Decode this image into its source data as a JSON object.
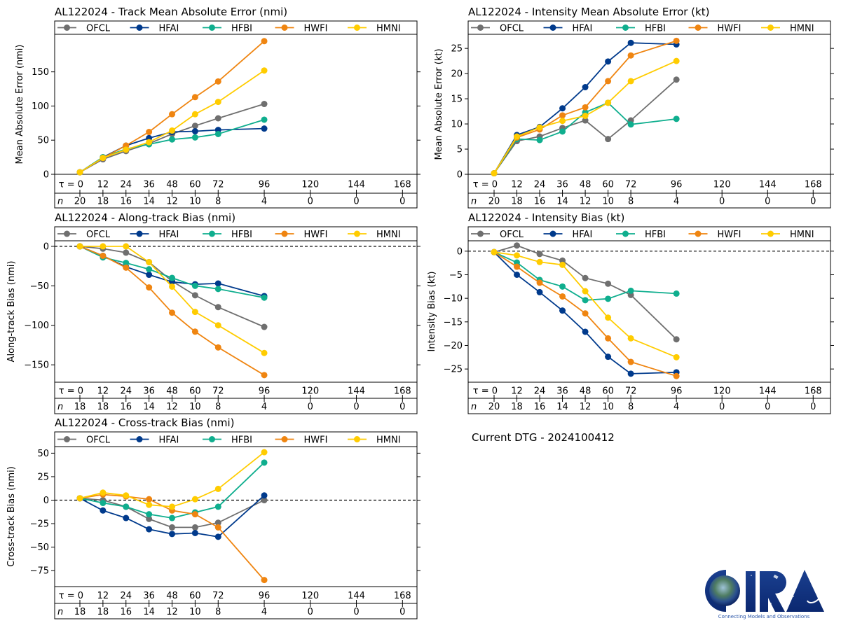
{
  "page": {
    "current_dtg_label": "Current DTG - 2024100412",
    "logo": {
      "name": "CIRA",
      "tagline": "Connecting Models and Observations"
    }
  },
  "series_styles": [
    {
      "name": "OFCL",
      "color": "#6f6f6f"
    },
    {
      "name": "HFAI",
      "color": "#003a8c"
    },
    {
      "name": "HFBI",
      "color": "#0fae8e"
    },
    {
      "name": "HWFI",
      "color": "#ef8511"
    },
    {
      "name": "HMNI",
      "color": "#ffcc00"
    }
  ],
  "chart_data": [
    {
      "id": "track-mae",
      "type": "line",
      "title": "AL122024 - Track Mean Absolute Error (nmi)",
      "ylabel": "Mean Absolute Error (nmi)",
      "xlabel": "τ",
      "x_tick_labels": [
        "τ = 0",
        "12",
        "24",
        "36",
        "48",
        "60",
        "72",
        "96",
        "120",
        "144",
        "168"
      ],
      "x_ticks": [
        0,
        12,
        24,
        36,
        48,
        60,
        72,
        96,
        120,
        144,
        168
      ],
      "n_label": "n",
      "n_counts": [
        20,
        18,
        16,
        14,
        12,
        10,
        8,
        4,
        0,
        0,
        0
      ],
      "ylim": [
        0,
        205
      ],
      "y_ticks": [
        0,
        50,
        100,
        150
      ],
      "zero_line": false,
      "legend": "top",
      "x": [
        0,
        12,
        24,
        36,
        48,
        60,
        72,
        96
      ],
      "series": [
        {
          "name": "OFCL",
          "values": [
            3,
            22,
            34,
            45,
            59,
            71,
            82,
            103
          ]
        },
        {
          "name": "HFAI",
          "values": [
            3,
            25,
            42,
            53,
            62,
            63,
            65,
            67
          ]
        },
        {
          "name": "HFBI",
          "values": [
            3,
            25,
            37,
            44,
            51,
            54,
            59,
            80
          ]
        },
        {
          "name": "HWFI",
          "values": [
            3,
            24,
            42,
            62,
            88,
            113,
            136,
            195
          ]
        },
        {
          "name": "HMNI",
          "values": [
            3,
            24,
            36,
            47,
            64,
            88,
            106,
            152
          ]
        }
      ]
    },
    {
      "id": "intensity-mae",
      "type": "line",
      "title": "AL122024 - Intensity Mean Absolute Error (kt)",
      "ylabel": "Mean Absolute Error (kt)",
      "xlabel": "τ",
      "x_tick_labels": [
        "τ = 0",
        "12",
        "24",
        "36",
        "48",
        "60",
        "72",
        "96",
        "120",
        "144",
        "168"
      ],
      "x_ticks": [
        0,
        12,
        24,
        36,
        48,
        60,
        72,
        96,
        120,
        144,
        168
      ],
      "n_label": "n",
      "n_counts": [
        20,
        18,
        16,
        14,
        12,
        10,
        8,
        4,
        0,
        0,
        0
      ],
      "ylim": [
        0,
        27.8
      ],
      "y_ticks": [
        0,
        5,
        10,
        15,
        20,
        25
      ],
      "zero_line": false,
      "legend": "top",
      "x": [
        0,
        12,
        24,
        36,
        48,
        60,
        72,
        96
      ],
      "series": [
        {
          "name": "OFCL",
          "values": [
            0.2,
            6.6,
            7.5,
            9.2,
            10.7,
            7.0,
            10.7,
            18.8
          ]
        },
        {
          "name": "HFAI",
          "values": [
            0.2,
            7.8,
            9.4,
            13.1,
            17.3,
            22.4,
            26.1,
            25.8
          ]
        },
        {
          "name": "HFBI",
          "values": [
            0.2,
            7.0,
            6.8,
            8.5,
            12.3,
            14.2,
            9.9,
            11.0
          ]
        },
        {
          "name": "HWFI",
          "values": [
            0.2,
            7.3,
            8.9,
            11.7,
            13.3,
            18.5,
            23.6,
            26.5
          ]
        },
        {
          "name": "HMNI",
          "values": [
            0.2,
            7.5,
            9.3,
            10.6,
            11.6,
            14.2,
            18.5,
            22.5
          ]
        }
      ]
    },
    {
      "id": "along-track-bias",
      "type": "line",
      "title": "AL122024 - Along-track Bias (nmi)",
      "ylabel": "Along-track Bias (nmi)",
      "xlabel": "τ",
      "x_tick_labels": [
        "τ = 0",
        "12",
        "24",
        "36",
        "48",
        "60",
        "72",
        "96",
        "120",
        "144",
        "168"
      ],
      "x_ticks": [
        0,
        12,
        24,
        36,
        48,
        60,
        72,
        96,
        120,
        144,
        168
      ],
      "n_label": "n",
      "n_counts": [
        18,
        18,
        16,
        14,
        12,
        10,
        8,
        4,
        0,
        0,
        0
      ],
      "ylim": [
        -172,
        7
      ],
      "y_ticks": [
        0,
        -50,
        -100,
        -150
      ],
      "zero_line": true,
      "legend": "top",
      "x": [
        0,
        12,
        24,
        36,
        48,
        60,
        72,
        96
      ],
      "series": [
        {
          "name": "OFCL",
          "values": [
            0,
            -3,
            -8,
            -20,
            -44,
            -62,
            -77,
            -102
          ]
        },
        {
          "name": "HFAI",
          "values": [
            0,
            -12,
            -26,
            -36,
            -45,
            -48,
            -47,
            -63
          ]
        },
        {
          "name": "HFBI",
          "values": [
            0,
            -14,
            -21,
            -29,
            -40,
            -50,
            -54,
            -65
          ]
        },
        {
          "name": "HWFI",
          "values": [
            0,
            -12,
            -27,
            -52,
            -84,
            -108,
            -128,
            -163
          ]
        },
        {
          "name": "HMNI",
          "values": [
            0,
            0,
            0,
            -20,
            -51,
            -83,
            -100,
            -135
          ]
        }
      ]
    },
    {
      "id": "intensity-bias",
      "type": "line",
      "title": "AL122024 - Intensity Bias (kt)",
      "ylabel": "Intensity Bias (kt)",
      "xlabel": "τ",
      "x_tick_labels": [
        "τ = 0",
        "12",
        "24",
        "36",
        "48",
        "60",
        "72",
        "96",
        "120",
        "144",
        "168"
      ],
      "x_ticks": [
        0,
        12,
        24,
        36,
        48,
        60,
        72,
        96,
        120,
        144,
        168
      ],
      "n_label": "n",
      "n_counts": [
        20,
        18,
        16,
        14,
        12,
        10,
        8,
        4,
        0,
        0,
        0
      ],
      "ylim": [
        -27.8,
        2.2
      ],
      "y_ticks": [
        0,
        -5,
        -10,
        -15,
        -20,
        -25
      ],
      "zero_line": true,
      "legend": "top",
      "x": [
        0,
        12,
        24,
        36,
        48,
        60,
        72,
        96
      ],
      "series": [
        {
          "name": "OFCL",
          "values": [
            -0.2,
            1.2,
            -0.6,
            -2.0,
            -5.7,
            -6.9,
            -9.3,
            -18.7
          ]
        },
        {
          "name": "HFAI",
          "values": [
            -0.2,
            -5.0,
            -8.7,
            -12.6,
            -17.1,
            -22.4,
            -26.0,
            -25.7
          ]
        },
        {
          "name": "HFBI",
          "values": [
            -0.2,
            -2.4,
            -6.1,
            -7.5,
            -10.4,
            -10.1,
            -8.4,
            -9.0
          ]
        },
        {
          "name": "HWFI",
          "values": [
            -0.2,
            -3.3,
            -6.7,
            -9.6,
            -13.2,
            -18.5,
            -23.5,
            -26.5
          ]
        },
        {
          "name": "HMNI",
          "values": [
            -0.2,
            -0.9,
            -2.3,
            -2.9,
            -8.5,
            -14.1,
            -18.5,
            -22.5
          ]
        }
      ]
    },
    {
      "id": "cross-track-bias",
      "type": "line",
      "title": "AL122024 - Cross-track Bias (nmi)",
      "ylabel": "Cross-track Bias (nmi)",
      "xlabel": "τ",
      "x_tick_labels": [
        "τ = 0",
        "12",
        "24",
        "36",
        "48",
        "60",
        "72",
        "96",
        "120",
        "144",
        "168"
      ],
      "x_ticks": [
        0,
        12,
        24,
        36,
        48,
        60,
        72,
        96,
        120,
        144,
        168
      ],
      "n_label": "n",
      "n_counts": [
        18,
        18,
        16,
        14,
        12,
        10,
        8,
        4,
        0,
        0,
        0
      ],
      "ylim": [
        -92,
        57
      ],
      "y_ticks": [
        50,
        25,
        0,
        -25,
        -50,
        -75
      ],
      "zero_line": true,
      "legend": "top",
      "x": [
        0,
        12,
        24,
        36,
        48,
        60,
        72,
        96
      ],
      "series": [
        {
          "name": "OFCL",
          "values": [
            2,
            0,
            -7,
            -20,
            -29,
            -29,
            -24,
            0
          ]
        },
        {
          "name": "HFAI",
          "values": [
            2,
            -11,
            -19,
            -31,
            -36,
            -35,
            -39,
            5
          ]
        },
        {
          "name": "HFBI",
          "values": [
            2,
            -3,
            -7,
            -15,
            -19,
            -13,
            -7,
            40
          ]
        },
        {
          "name": "HWFI",
          "values": [
            2,
            6,
            4,
            1,
            -11,
            -15,
            -29,
            -85
          ]
        },
        {
          "name": "HMNI",
          "values": [
            2,
            8,
            5,
            -5,
            -7,
            1,
            12,
            51
          ]
        }
      ]
    }
  ]
}
